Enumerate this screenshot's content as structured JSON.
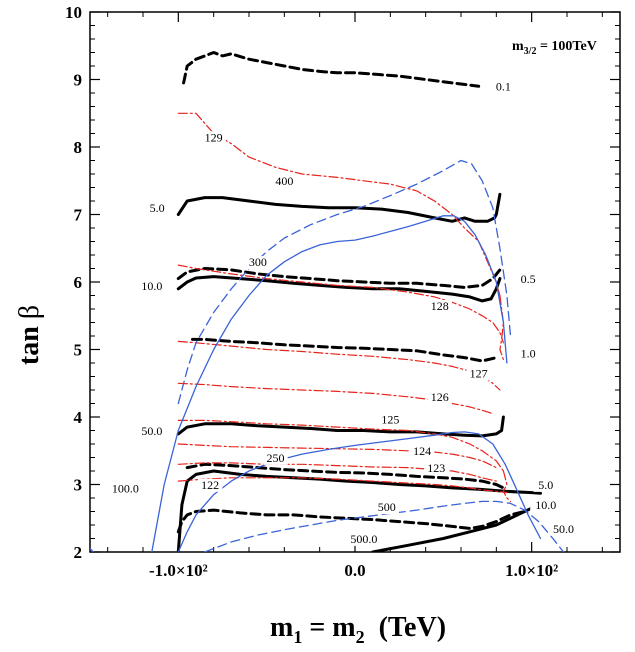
{
  "chart_data": {
    "type": "line",
    "title": "",
    "xlabel": {
      "main": "m",
      "sub1": "1",
      "eq": " = m",
      "sub2": "2",
      "unit": "  (TeV)"
    },
    "ylabel": {
      "main": "tan ",
      "greek": "β"
    },
    "annotation": {
      "main": "m",
      "sub": "3/2",
      "rest": " = 100TeV"
    },
    "xlim": [
      -150,
      150
    ],
    "ylim": [
      2,
      10
    ],
    "xticks": [
      {
        "value": -100,
        "label": "-1.0×10²"
      },
      {
        "value": 0,
        "label": "0.0"
      },
      {
        "value": 100,
        "label": "1.0×10²"
      }
    ],
    "yticks": [
      {
        "value": 2,
        "label": "2"
      },
      {
        "value": 3,
        "label": "3"
      },
      {
        "value": 4,
        "label": "4"
      },
      {
        "value": 5,
        "label": "5"
      },
      {
        "value": 6,
        "label": "6"
      },
      {
        "value": 7,
        "label": "7"
      },
      {
        "value": 8,
        "label": "8"
      },
      {
        "value": 9,
        "label": "9"
      },
      {
        "value": 10,
        "label": "10"
      }
    ],
    "colors": {
      "black": "#000000",
      "red": "#e8231c",
      "blue": "#3a63d8"
    },
    "series": [
      {
        "name": "black-solid-5.0",
        "color": "black",
        "style": "solid",
        "width": 3,
        "x": [
          -100,
          -95,
          -85,
          -75,
          -60,
          -45,
          -30,
          -15,
          0,
          15,
          30,
          45,
          55,
          62,
          68,
          75,
          79,
          80,
          82
        ],
        "y": [
          7.0,
          7.2,
          7.25,
          7.25,
          7.2,
          7.15,
          7.12,
          7.1,
          7.1,
          7.08,
          7.03,
          6.95,
          6.9,
          6.95,
          6.9,
          6.9,
          6.95,
          7.0,
          7.3
        ]
      },
      {
        "name": "black-solid-10.0",
        "color": "black",
        "style": "solid",
        "width": 3,
        "x": [
          -100,
          -95,
          -90,
          -80,
          -65,
          -50,
          -35,
          -20,
          -5,
          10,
          25,
          40,
          55,
          65,
          72,
          77,
          80,
          82
        ],
        "y": [
          5.9,
          6.0,
          6.06,
          6.08,
          6.05,
          6.02,
          5.98,
          5.95,
          5.92,
          5.9,
          5.9,
          5.86,
          5.82,
          5.78,
          5.72,
          5.75,
          5.9,
          6.05
        ]
      },
      {
        "name": "black-solid-50.0",
        "color": "black",
        "style": "solid",
        "width": 3,
        "x": [
          -100,
          -95,
          -85,
          -70,
          -55,
          -40,
          -25,
          -10,
          5,
          20,
          35,
          50,
          62,
          72,
          80,
          83,
          84
        ],
        "y": [
          3.75,
          3.85,
          3.9,
          3.9,
          3.87,
          3.85,
          3.83,
          3.8,
          3.8,
          3.78,
          3.78,
          3.75,
          3.73,
          3.72,
          3.75,
          3.8,
          4.0
        ]
      },
      {
        "name": "black-solid-100.0",
        "color": "black",
        "style": "solid",
        "width": 3,
        "x": [
          -100,
          -98,
          -95,
          -90,
          -80,
          -65,
          -50,
          -35,
          -20,
          -5,
          10,
          25,
          40,
          55,
          70,
          85,
          100,
          105
        ],
        "y": [
          2.0,
          2.7,
          3.05,
          3.15,
          3.2,
          3.15,
          3.12,
          3.1,
          3.08,
          3.05,
          3.03,
          3.0,
          2.98,
          2.95,
          2.93,
          2.9,
          2.88,
          2.87
        ]
      },
      {
        "name": "black-solid-500.0",
        "color": "black",
        "style": "solid",
        "width": 3,
        "x": [
          10,
          30,
          50,
          65,
          80,
          92,
          100
        ],
        "y": [
          2.0,
          2.1,
          2.2,
          2.3,
          2.4,
          2.55,
          2.65
        ]
      },
      {
        "name": "black-dash-0.1",
        "color": "black",
        "style": "dash",
        "width": 3,
        "x": [
          -97,
          -95,
          -90,
          -85,
          -80,
          -75,
          -70,
          -60,
          -50,
          -40,
          -30,
          -20,
          -10,
          0,
          10,
          25,
          40,
          55,
          70
        ],
        "y": [
          8.95,
          9.2,
          9.3,
          9.35,
          9.4,
          9.35,
          9.38,
          9.3,
          9.25,
          9.2,
          9.15,
          9.12,
          9.1,
          9.1,
          9.08,
          9.05,
          9.0,
          8.95,
          8.9
        ]
      },
      {
        "name": "black-dash-0.5",
        "color": "black",
        "style": "dash",
        "width": 3,
        "x": [
          -100,
          -95,
          -85,
          -70,
          -55,
          -40,
          -25,
          -10,
          5,
          20,
          35,
          50,
          62,
          72,
          78,
          82
        ],
        "y": [
          6.05,
          6.15,
          6.2,
          6.18,
          6.12,
          6.08,
          6.05,
          6.02,
          6.0,
          5.98,
          5.98,
          5.95,
          5.92,
          5.95,
          6.05,
          6.18
        ]
      },
      {
        "name": "black-dash-1.0",
        "color": "black",
        "style": "dash",
        "width": 3,
        "x": [
          -92,
          -85,
          -70,
          -55,
          -40,
          -25,
          -10,
          5,
          20,
          35,
          50,
          62,
          72,
          80
        ],
        "y": [
          5.15,
          5.15,
          5.12,
          5.1,
          5.07,
          5.05,
          5.03,
          5.02,
          5.0,
          4.98,
          4.92,
          4.88,
          4.83,
          4.88
        ]
      },
      {
        "name": "black-dash-low1",
        "color": "black",
        "style": "dash",
        "width": 3,
        "x": [
          -95,
          -85,
          -70,
          -55,
          -40,
          -25,
          -10,
          5,
          20,
          35,
          50,
          62,
          72,
          80,
          84
        ],
        "y": [
          3.25,
          3.3,
          3.28,
          3.25,
          3.22,
          3.2,
          3.18,
          3.17,
          3.15,
          3.12,
          3.1,
          3.08,
          3.05,
          3.0,
          2.95
        ]
      },
      {
        "name": "black-dash-low2",
        "color": "black",
        "style": "dash",
        "width": 3,
        "x": [
          -100,
          -98,
          -95,
          -90,
          -80,
          -65,
          -50,
          -35,
          -20,
          -5,
          10,
          25,
          40,
          55,
          65,
          72,
          80,
          88,
          96
        ],
        "y": [
          2.3,
          2.45,
          2.55,
          2.6,
          2.62,
          2.58,
          2.55,
          2.55,
          2.52,
          2.5,
          2.48,
          2.45,
          2.42,
          2.38,
          2.35,
          2.38,
          2.45,
          2.55,
          2.6
        ]
      },
      {
        "name": "red-129",
        "color": "red",
        "style": "dashdot",
        "width": 1.2,
        "x": [
          -100,
          -90,
          -85,
          -80,
          -70,
          -60,
          -45,
          -30,
          -10,
          5,
          20,
          35,
          45,
          55,
          62,
          70,
          75,
          80,
          82
        ],
        "y": [
          8.5,
          8.5,
          8.35,
          8.2,
          8.05,
          7.85,
          7.7,
          7.6,
          7.55,
          7.5,
          7.45,
          7.35,
          7.2,
          7.0,
          6.8,
          6.6,
          6.3,
          6.0,
          5.8
        ]
      },
      {
        "name": "red-128",
        "color": "red",
        "style": "dashdot",
        "width": 1.2,
        "x": [
          -100,
          -90,
          -70,
          -50,
          -30,
          -10,
          10,
          30,
          45,
          55,
          65,
          72,
          78,
          82,
          84
        ],
        "y": [
          6.25,
          6.2,
          6.12,
          6.05,
          6.0,
          5.95,
          5.92,
          5.85,
          5.78,
          5.7,
          5.6,
          5.5,
          5.4,
          5.25,
          5.1
        ]
      },
      {
        "name": "red-127",
        "color": "red",
        "style": "dashdot",
        "width": 1.2,
        "x": [
          -100,
          -90,
          -70,
          -50,
          -30,
          -10,
          10,
          30,
          45,
          55,
          65,
          72,
          78,
          82
        ],
        "y": [
          5.12,
          5.1,
          5.05,
          5.0,
          4.97,
          4.93,
          4.9,
          4.85,
          4.8,
          4.75,
          4.68,
          4.6,
          4.5,
          4.4
        ]
      },
      {
        "name": "red-126",
        "color": "red",
        "style": "dashdot",
        "width": 1.2,
        "x": [
          -100,
          -85,
          -70,
          -50,
          -30,
          -10,
          10,
          30,
          45,
          55,
          65,
          72,
          78
        ],
        "y": [
          4.5,
          4.48,
          4.45,
          4.42,
          4.4,
          4.38,
          4.35,
          4.3,
          4.25,
          4.2,
          4.15,
          4.1,
          4.05
        ]
      },
      {
        "name": "red-125",
        "color": "red",
        "style": "dashdot",
        "width": 1.2,
        "x": [
          -100,
          -85,
          -70,
          -50,
          -30,
          -10,
          10,
          30,
          45,
          55,
          65,
          72,
          80,
          84
        ],
        "y": [
          3.95,
          3.95,
          3.93,
          3.9,
          3.88,
          3.85,
          3.82,
          3.8,
          3.75,
          3.7,
          3.6,
          3.5,
          3.35,
          3.2
        ]
      },
      {
        "name": "red-124",
        "color": "red",
        "style": "dashdot",
        "width": 1.2,
        "x": [
          -100,
          -85,
          -70,
          -50,
          -30,
          -10,
          10,
          30,
          45,
          55,
          65,
          72,
          80
        ],
        "y": [
          3.6,
          3.58,
          3.56,
          3.55,
          3.54,
          3.53,
          3.52,
          3.5,
          3.48,
          3.45,
          3.4,
          3.35,
          3.25
        ]
      },
      {
        "name": "red-123",
        "color": "red",
        "style": "dashdot",
        "width": 1.2,
        "x": [
          -100,
          -85,
          -70,
          -50,
          -30,
          -10,
          10,
          30,
          45,
          55,
          65,
          72,
          80
        ],
        "y": [
          3.3,
          3.32,
          3.32,
          3.3,
          3.3,
          3.28,
          3.26,
          3.25,
          3.22,
          3.2,
          3.15,
          3.1,
          3.05
        ]
      },
      {
        "name": "red-122",
        "color": "red",
        "style": "dashdot",
        "width": 1.2,
        "x": [
          -100,
          -85,
          -70,
          -50,
          -30,
          -10,
          10,
          30,
          45,
          55,
          65,
          72,
          80,
          86
        ],
        "y": [
          3.05,
          3.08,
          3.1,
          3.1,
          3.1,
          3.08,
          3.05,
          3.02,
          3.0,
          2.98,
          2.95,
          2.92,
          2.9,
          2.88
        ]
      },
      {
        "name": "red-hook-a",
        "color": "red",
        "style": "dashdot",
        "width": 1.2,
        "x": [
          82,
          84,
          83,
          82,
          84
        ],
        "y": [
          5.8,
          5.4,
          5.15,
          5.0,
          4.85
        ]
      },
      {
        "name": "red-hook-b",
        "color": "red",
        "style": "dashdot",
        "width": 1.2,
        "x": [
          84,
          86,
          84,
          86,
          88
        ],
        "y": [
          3.2,
          3.0,
          2.9,
          2.8,
          2.75
        ]
      },
      {
        "name": "blue-dash-400",
        "color": "blue",
        "style": "dash",
        "width": 1.3,
        "x": [
          -100,
          -95,
          -90,
          -80,
          -70,
          -60,
          -50,
          -40,
          -25,
          -10,
          5,
          20,
          35,
          50,
          60,
          66,
          72,
          78,
          82,
          86,
          88
        ],
        "y": [
          4.2,
          4.7,
          5.1,
          5.55,
          5.9,
          6.2,
          6.45,
          6.65,
          6.85,
          7.0,
          7.12,
          7.28,
          7.45,
          7.65,
          7.8,
          7.75,
          7.5,
          7.1,
          6.5,
          5.8,
          5.2
        ]
      },
      {
        "name": "blue-solid-300",
        "color": "blue",
        "style": "solid",
        "width": 1.3,
        "x": [
          -115,
          -108,
          -100,
          -90,
          -80,
          -70,
          -60,
          -50,
          -40,
          -30,
          -20,
          -10,
          0,
          10,
          20,
          30,
          40,
          50,
          56,
          62,
          68,
          74,
          80,
          84,
          86
        ],
        "y": [
          2.0,
          3.0,
          3.8,
          4.45,
          5.0,
          5.45,
          5.8,
          6.1,
          6.3,
          6.45,
          6.55,
          6.6,
          6.62,
          6.68,
          6.75,
          6.82,
          6.9,
          6.98,
          6.98,
          6.9,
          6.7,
          6.4,
          6.0,
          5.4,
          4.8
        ]
      },
      {
        "name": "blue-solid-250",
        "color": "blue",
        "style": "solid",
        "width": 1.3,
        "x": [
          -100,
          -95,
          -90,
          -80,
          -70,
          -60,
          -45,
          -30,
          -15,
          0,
          15,
          30,
          45,
          55,
          62,
          70,
          78,
          85,
          92,
          98,
          105
        ],
        "y": [
          2.0,
          2.3,
          2.55,
          2.85,
          3.05,
          3.2,
          3.35,
          3.45,
          3.52,
          3.58,
          3.63,
          3.68,
          3.73,
          3.77,
          3.78,
          3.75,
          3.6,
          3.3,
          2.9,
          2.55,
          2.2
        ]
      },
      {
        "name": "blue-dash-500",
        "color": "blue",
        "style": "dash",
        "width": 1.3,
        "x": [
          -85,
          -70,
          -55,
          -40,
          -25,
          -10,
          5,
          20,
          35,
          50,
          62,
          72,
          80,
          88,
          96,
          104,
          112,
          118
        ],
        "y": [
          2.0,
          2.15,
          2.25,
          2.33,
          2.4,
          2.47,
          2.52,
          2.57,
          2.62,
          2.68,
          2.72,
          2.75,
          2.75,
          2.72,
          2.62,
          2.45,
          2.2,
          2.0
        ]
      },
      {
        "name": "blue-edge",
        "color": "blue",
        "style": "solid",
        "width": 1.3,
        "x": [
          -150,
          -148
        ],
        "y": [
          2.05,
          2.0
        ]
      }
    ],
    "contour_labels": [
      {
        "text": "0.1",
        "x": 84,
        "y": 8.85
      },
      {
        "text": "5.0",
        "x": -112,
        "y": 7.05
      },
      {
        "text": "10.0",
        "x": -115,
        "y": 5.9
      },
      {
        "text": "0.5",
        "x": 98,
        "y": 6.0
      },
      {
        "text": "1.0",
        "x": 98,
        "y": 4.9
      },
      {
        "text": "50.0",
        "x": -115,
        "y": 3.75
      },
      {
        "text": "100.0",
        "x": -130,
        "y": 2.9
      },
      {
        "text": "5.0",
        "x": 108,
        "y": 2.95
      },
      {
        "text": "10.0",
        "x": 108,
        "y": 2.65
      },
      {
        "text": "50.0",
        "x": 118,
        "y": 2.3
      },
      {
        "text": "500.0",
        "x": 5,
        "y": 2.15
      },
      {
        "text": "129",
        "x": -80,
        "y": 8.1
      },
      {
        "text": "128",
        "x": 48,
        "y": 5.6
      },
      {
        "text": "127",
        "x": 70,
        "y": 4.6
      },
      {
        "text": "126",
        "x": 48,
        "y": 4.25
      },
      {
        "text": "125",
        "x": 20,
        "y": 3.92
      },
      {
        "text": "124",
        "x": 38,
        "y": 3.45
      },
      {
        "text": "123",
        "x": 46,
        "y": 3.2
      },
      {
        "text": "122",
        "x": -82,
        "y": 2.95
      },
      {
        "text": "400",
        "x": -40,
        "y": 7.45
      },
      {
        "text": "300",
        "x": -55,
        "y": 6.25
      },
      {
        "text": "250",
        "x": -45,
        "y": 3.35
      },
      {
        "text": "500",
        "x": 18,
        "y": 2.62
      }
    ]
  }
}
